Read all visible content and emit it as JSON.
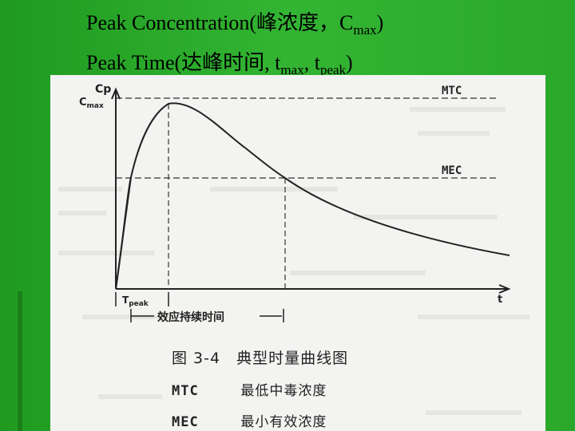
{
  "slide": {
    "line1": {
      "text": "Peak Concentration(峰浓度，C",
      "sub": "max",
      "close": ")"
    },
    "line2": {
      "text": "Peak Time(达峰时间, t",
      "sub1": "max",
      "mid": ", t",
      "sub2": "peak",
      "close": ")"
    }
  },
  "figure": {
    "y_axis_label": "Cp",
    "cmax_label": "C",
    "cmax_sub": "max",
    "x_axis_label": "t",
    "mtc_label": "MTC",
    "mec_label": "MEC",
    "tpeak_label": "T",
    "tpeak_sub": "peak",
    "duration_label": "效应持续时间",
    "caption_title": "图 3-4　典型时量曲线图",
    "legend": [
      {
        "abbr": "MTC",
        "desc": "最低中毒浓度"
      },
      {
        "abbr": "MEC",
        "desc": "最小有效浓度"
      }
    ]
  },
  "colors": {
    "background": "#2aa82a",
    "paper": "#f3f3f1",
    "ink": "#222222"
  }
}
